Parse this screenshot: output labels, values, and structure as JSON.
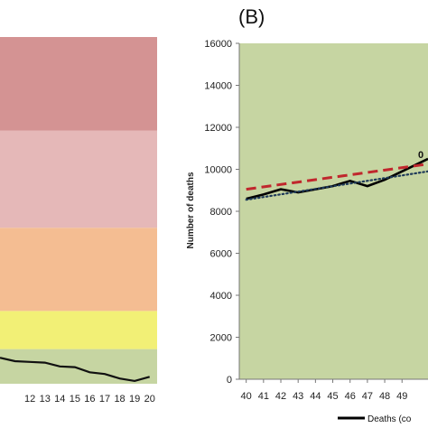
{
  "chart_data": [
    {
      "type": "line",
      "title": "",
      "background_bands": [
        {
          "from": 0.0,
          "to": 0.1,
          "color": "#c6d5a2"
        },
        {
          "from": 0.1,
          "to": 0.21,
          "color": "#f2f076"
        },
        {
          "from": 0.21,
          "to": 0.45,
          "color": "#f4bd92"
        },
        {
          "from": 0.45,
          "to": 0.73,
          "color": "#e5b8b8"
        },
        {
          "from": 0.73,
          "to": 1.0,
          "color": "#d49393"
        }
      ],
      "categories": [
        "12",
        "13",
        "14",
        "15",
        "16",
        "17",
        "18",
        "19",
        "20"
      ],
      "x_visible": [
        12,
        13,
        14,
        15,
        16,
        17,
        18,
        19,
        20
      ],
      "xlim": [
        10,
        20.5
      ],
      "ylim": [
        0,
        1
      ],
      "series": [
        {
          "color": "#111111",
          "style": "solid",
          "x": [
            10,
            11,
            12,
            13,
            14,
            15,
            16,
            17,
            18,
            19,
            20
          ],
          "y": [
            0.075,
            0.065,
            0.063,
            0.061,
            0.05,
            0.048,
            0.033,
            0.028,
            0.015,
            0.008,
            0.02
          ]
        }
      ]
    },
    {
      "type": "line",
      "panel_label": "(B)",
      "ylabel": "Number of deaths",
      "xlabel": "",
      "ylim": [
        0,
        16000
      ],
      "yticks": [
        0,
        2000,
        4000,
        6000,
        8000,
        10000,
        12000,
        14000,
        16000
      ],
      "ytick_labels": [
        "0",
        "2000",
        "4000",
        "6000",
        "8000",
        "10000",
        "12000",
        "14000",
        "16000"
      ],
      "categories": [
        "40",
        "41",
        "42",
        "43",
        "44",
        "45",
        "46",
        "47",
        "48",
        "49"
      ],
      "x_visible": [
        40,
        41,
        42,
        43,
        44,
        45,
        46,
        47,
        48,
        49
      ],
      "xlim": [
        39.6,
        50.5
      ],
      "background": "#c6d5a2",
      "annotation": "0",
      "legend_label": "Deaths (co",
      "series": [
        {
          "legend": "Deaths (co",
          "color": "#000000",
          "style": "solid",
          "x": [
            40,
            41,
            42,
            43,
            44,
            45,
            46,
            47,
            48,
            49,
            50.5
          ],
          "y": [
            8600,
            8800,
            9050,
            8900,
            9050,
            9200,
            9450,
            9200,
            9500,
            9900,
            10500
          ]
        },
        {
          "color": "#c0272d",
          "style": "dashed",
          "x": [
            40,
            50.5
          ],
          "y": [
            9050,
            10250
          ]
        },
        {
          "color": "#1f3b5a",
          "style": "dotted",
          "x": [
            40,
            50.5
          ],
          "y": [
            8550,
            9900
          ]
        }
      ]
    }
  ]
}
